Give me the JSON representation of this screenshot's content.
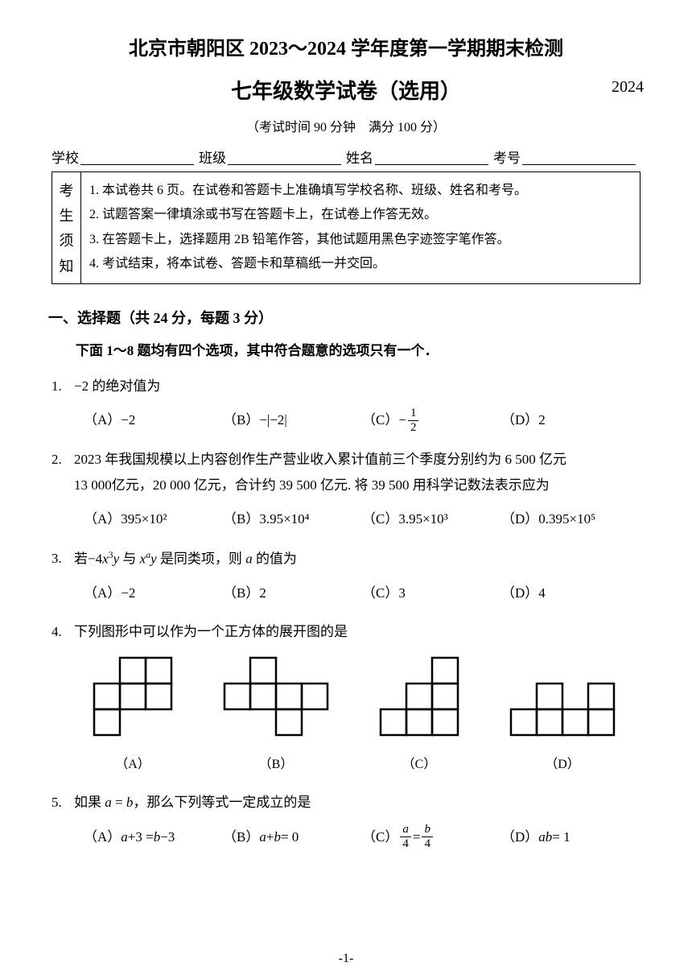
{
  "header": {
    "title": "北京市朝阳区 2023～2024 学年度第一学期期末检测",
    "subtitle": "七年级数学试卷（选用）",
    "year": "2024",
    "exam_info": "（考试时间 90 分钟　满分 100 分）"
  },
  "fill_labels": {
    "school": "学校",
    "class": "班级",
    "name": "姓名",
    "exam_no": "考号"
  },
  "notice": {
    "side": [
      "考",
      "生",
      "须",
      "知"
    ],
    "items": [
      "1. 本试卷共 6 页。在试卷和答题卡上准确填写学校名称、班级、姓名和考号。",
      "2. 试题答案一律填涂或书写在答题卡上，在试卷上作答无效。",
      "3. 在答题卡上，选择题用 2B 铅笔作答，其他试题用黑色字迹签字笔作答。",
      "4. 考试结束，将本试卷、答题卡和草稿纸一并交回。"
    ]
  },
  "section1": {
    "title": "一、选择题（共 24 分，每题 3 分）",
    "sub": "下面 1～8 题均有四个选项，其中符合题意的选项只有一个．"
  },
  "q1": {
    "num": "1.",
    "text": "−2 的绝对值为",
    "A": "（A）−2",
    "B": "（B）−|−2|",
    "D": "（D）2"
  },
  "q2": {
    "num": "2.",
    "line1": "2023 年我国规模以上内容创作生产营业收入累计值前三个季度分别约为 6 500 亿元",
    "line2": "13 000亿元，20 000 亿元，合计约 39 500 亿元. 将 39 500 用科学记数法表示应为",
    "A": "（A）395×10²",
    "B": "（B）3.95×10⁴",
    "C": "（C）3.95×10³",
    "D": "（D）0.395×10⁵"
  },
  "q3": {
    "num": "3.",
    "A": "（A）−2",
    "B": "（B）2",
    "C": "（C）3",
    "D": "（D）4"
  },
  "q4": {
    "num": "4.",
    "text": "下列图形中可以作为一个正方体的展开图的是",
    "labels": {
      "A": "（A）",
      "B": "（B）",
      "C": "（C）",
      "D": "（D）"
    }
  },
  "q5": {
    "num": "5.",
    "A_pre": "（A）",
    "A_eq": "a+3 = b−3",
    "B_pre": "（B）",
    "B_eq": "a+b = 0",
    "C_pre": "（C）",
    "D_pre": "（D）",
    "D_eq": "ab = 1"
  },
  "page_number": "-1-",
  "nets": {
    "cell": 32,
    "A": [
      [
        1,
        0
      ],
      [
        2,
        0
      ],
      [
        0,
        1
      ],
      [
        1,
        1
      ],
      [
        2,
        1
      ],
      [
        0,
        2
      ]
    ],
    "B": [
      [
        1,
        0
      ],
      [
        0,
        1
      ],
      [
        1,
        1
      ],
      [
        2,
        1
      ],
      [
        3,
        1
      ],
      [
        2,
        2
      ]
    ],
    "C": [
      [
        2,
        0
      ],
      [
        2,
        1
      ],
      [
        1,
        1
      ],
      [
        0,
        2
      ],
      [
        1,
        2
      ],
      [
        2,
        2
      ]
    ],
    "D": [
      [
        1,
        0
      ],
      [
        3,
        0
      ],
      [
        0,
        1
      ],
      [
        1,
        1
      ],
      [
        2,
        1
      ],
      [
        3,
        1
      ]
    ]
  }
}
